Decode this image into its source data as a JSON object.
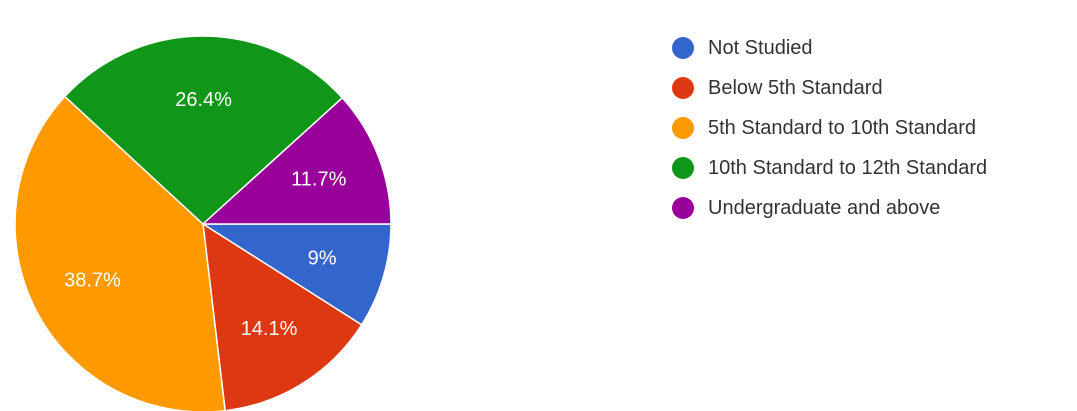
{
  "chart_data": {
    "type": "pie",
    "slices": [
      {
        "label": "Not Studied",
        "value": 9,
        "display": "9%",
        "color": "#3366cc"
      },
      {
        "label": "Below 5th Standard",
        "value": 14.1,
        "display": "14.1%",
        "color": "#dc3912"
      },
      {
        "label": "5th Standard to 10th Standard",
        "value": 38.7,
        "display": "38.7%",
        "color": "#ff9900"
      },
      {
        "label": "10th Standard to 12th Standard",
        "value": 26.4,
        "display": "26.4%",
        "color": "#109618"
      },
      {
        "label": "Undergraduate and above",
        "value": 11.7,
        "display": "11.7%",
        "color": "#990099"
      }
    ],
    "legend_position": "right"
  }
}
